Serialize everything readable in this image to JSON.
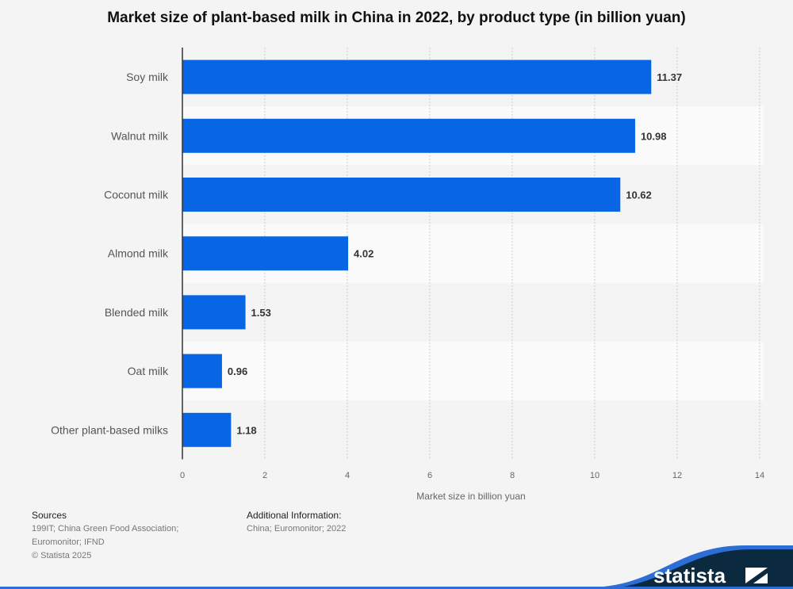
{
  "chart_data": {
    "type": "bar",
    "orientation": "horizontal",
    "title": "Market size of plant-based milk in China in 2022, by product type (in billion yuan)",
    "categories": [
      "Soy milk",
      "Walnut milk",
      "Coconut milk",
      "Almond milk",
      "Blended milk",
      "Oat milk",
      "Other plant-based milks"
    ],
    "values": [
      11.37,
      10.98,
      10.62,
      4.02,
      1.53,
      0.96,
      1.18
    ],
    "value_labels": [
      "11.37",
      "10.98",
      "10.62",
      "4.02",
      "1.53",
      "0.96",
      "1.18"
    ],
    "xlabel": "Market size in billion yuan",
    "ylabel": "",
    "xlim": [
      0,
      14
    ],
    "ticks": [
      "0",
      "2",
      "4",
      "6",
      "8",
      "10",
      "12",
      "14"
    ],
    "grid": true,
    "bar_color": "#0866e4"
  },
  "footer": {
    "sources_heading": "Sources",
    "sources_line1": "199IT; China Green Food Association;",
    "sources_line2": "Euromonitor; IFND",
    "copyright": "© Statista 2025",
    "additional_heading": "Additional Information:",
    "additional_text": "China; Euromonitor; 2022",
    "logo_text": "statista"
  }
}
